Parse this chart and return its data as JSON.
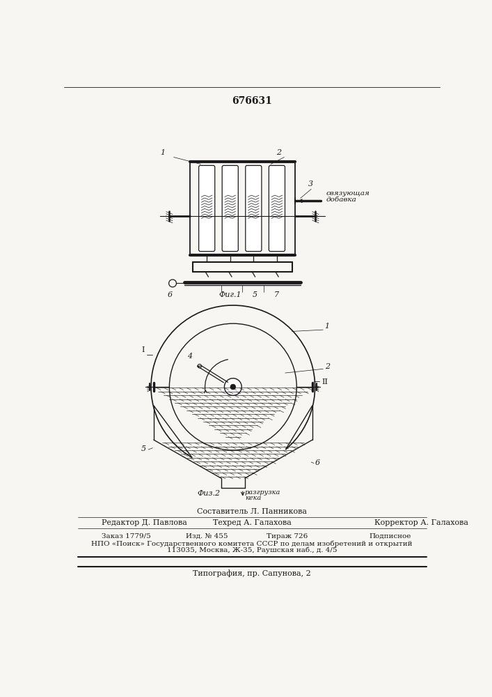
{
  "patent_number": "676631",
  "bg_color": "#f7f6f2",
  "line_color": "#1a1a1a",
  "fig1_caption": "Фиг.1",
  "fig2_caption": "Физ.2",
  "label_svyaz_line1": "связующая",
  "label_svyaz_line2": "добавка",
  "label_razgruzka_line1": "разгрузка",
  "label_razgruzka_line2": "кека",
  "footer_sestavitel": "Составитель Л. Панникова",
  "footer_redaktor": "Редактор Д. Павлова",
  "footer_tehred": "Техред А. Галахова",
  "footer_korrektor": "Корректор А. Галахова",
  "footer_zakaz": "Заказ 1779/5",
  "footer_izd": "Изд. № 455",
  "footer_tirazh": "Тираж 726",
  "footer_podpisnoe": "Подписное",
  "footer_npo": "НПО «Поиск» Государственного комитета СССР по делам изобретений и открытий",
  "footer_addr": "113035, Москва, Ж-35, Раушская наб., д. 4/5",
  "footer_tipograf": "Типография, пр. Сапунова, 2"
}
